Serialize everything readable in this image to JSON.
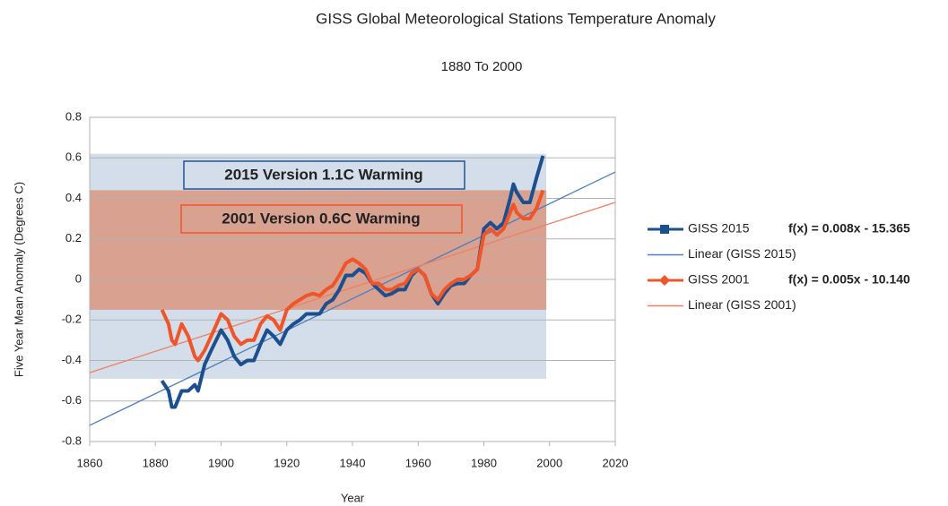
{
  "chart_data": {
    "type": "line",
    "title": "GISS Global Meteorological Stations Temperature Anomaly",
    "subtitle": "1880 To 2000",
    "x_label": "Year",
    "y_label": "Five Year Mean Anomaly (Degrees C)",
    "xlim": [
      1860,
      2020
    ],
    "xticks": [
      1860,
      1880,
      1900,
      1920,
      1940,
      1960,
      1980,
      2000,
      2020
    ],
    "ylim": [
      -0.8,
      0.8
    ],
    "yticks": [
      0.8,
      0.6,
      0.4,
      0.2,
      0,
      -0.2,
      -0.4,
      -0.6,
      -0.8
    ],
    "grid": true,
    "legend": "right",
    "bands": [
      {
        "x": [
          1860,
          1999
        ],
        "y": [
          -0.49,
          0.62
        ],
        "color": "#d3deea",
        "annotation": "2015 Version 1.1C Warming",
        "text_color": "#1f5597"
      },
      {
        "x": [
          1860,
          1999
        ],
        "y": [
          -0.15,
          0.44
        ],
        "color": "#d9a190",
        "annotation": "2001 Version 0.6C Warming",
        "text_color": "#f0552a"
      }
    ],
    "series": [
      {
        "name": "GISS 2015",
        "color": "#1b4f8f",
        "marker": "square",
        "equation": "f(x) = 0.008x - 15.365",
        "x": [
          1882,
          1884,
          1885,
          1886,
          1888,
          1890,
          1892,
          1893,
          1895,
          1897,
          1900,
          1902,
          1904,
          1906,
          1908,
          1910,
          1912,
          1914,
          1916,
          1918,
          1920,
          1922,
          1924,
          1926,
          1928,
          1930,
          1932,
          1934,
          1936,
          1938,
          1940,
          1942,
          1944,
          1946,
          1948,
          1950,
          1952,
          1954,
          1956,
          1958,
          1960,
          1962,
          1964,
          1966,
          1968,
          1970,
          1972,
          1974,
          1976,
          1978,
          1980,
          1982,
          1984,
          1986,
          1988,
          1989,
          1990,
          1992,
          1994,
          1996,
          1998
        ],
        "values": [
          -0.5,
          -0.55,
          -0.63,
          -0.63,
          -0.55,
          -0.55,
          -0.52,
          -0.55,
          -0.42,
          -0.35,
          -0.25,
          -0.3,
          -0.38,
          -0.42,
          -0.4,
          -0.4,
          -0.32,
          -0.25,
          -0.28,
          -0.32,
          -0.25,
          -0.22,
          -0.2,
          -0.17,
          -0.17,
          -0.17,
          -0.12,
          -0.1,
          -0.05,
          0.02,
          0.02,
          0.05,
          0.03,
          -0.02,
          -0.05,
          -0.08,
          -0.07,
          -0.05,
          -0.05,
          0.02,
          0.05,
          0.02,
          -0.07,
          -0.12,
          -0.07,
          -0.03,
          -0.02,
          -0.02,
          0.02,
          0.05,
          0.25,
          0.28,
          0.25,
          0.28,
          0.4,
          0.47,
          0.43,
          0.38,
          0.38,
          0.5,
          0.61
        ]
      },
      {
        "name": "Linear (GISS 2015)",
        "color": "#4a7fc0",
        "trend": true,
        "x": [
          1860,
          2020
        ],
        "values": [
          -0.72,
          0.53
        ]
      },
      {
        "name": "GISS 2001",
        "color": "#f0552a",
        "marker": "diamond",
        "equation": "f(x) = 0.005x - 10.140",
        "x": [
          1882,
          1884,
          1885,
          1886,
          1888,
          1890,
          1892,
          1893,
          1895,
          1897,
          1900,
          1902,
          1904,
          1906,
          1908,
          1910,
          1912,
          1914,
          1916,
          1918,
          1920,
          1922,
          1924,
          1926,
          1928,
          1930,
          1932,
          1934,
          1936,
          1938,
          1940,
          1942,
          1944,
          1946,
          1948,
          1950,
          1952,
          1954,
          1956,
          1958,
          1960,
          1962,
          1964,
          1966,
          1968,
          1970,
          1972,
          1974,
          1976,
          1978,
          1980,
          1982,
          1984,
          1986,
          1988,
          1989,
          1990,
          1992,
          1994,
          1996,
          1998
        ],
        "values": [
          -0.15,
          -0.22,
          -0.3,
          -0.32,
          -0.22,
          -0.28,
          -0.38,
          -0.4,
          -0.35,
          -0.28,
          -0.17,
          -0.2,
          -0.28,
          -0.32,
          -0.3,
          -0.3,
          -0.22,
          -0.18,
          -0.2,
          -0.25,
          -0.15,
          -0.12,
          -0.1,
          -0.08,
          -0.07,
          -0.08,
          -0.05,
          -0.03,
          0.02,
          0.08,
          0.1,
          0.08,
          0.05,
          -0.02,
          -0.02,
          -0.05,
          -0.05,
          -0.03,
          -0.02,
          0.03,
          0.05,
          0.02,
          -0.07,
          -0.1,
          -0.05,
          -0.02,
          0,
          0,
          0.02,
          0.05,
          0.22,
          0.25,
          0.22,
          0.25,
          0.33,
          0.37,
          0.33,
          0.3,
          0.3,
          0.35,
          0.44
        ]
      },
      {
        "name": "Linear (GISS 2001)",
        "color": "#f08060",
        "trend": true,
        "x": [
          1860,
          2020
        ],
        "values": [
          -0.46,
          0.38
        ]
      }
    ]
  }
}
